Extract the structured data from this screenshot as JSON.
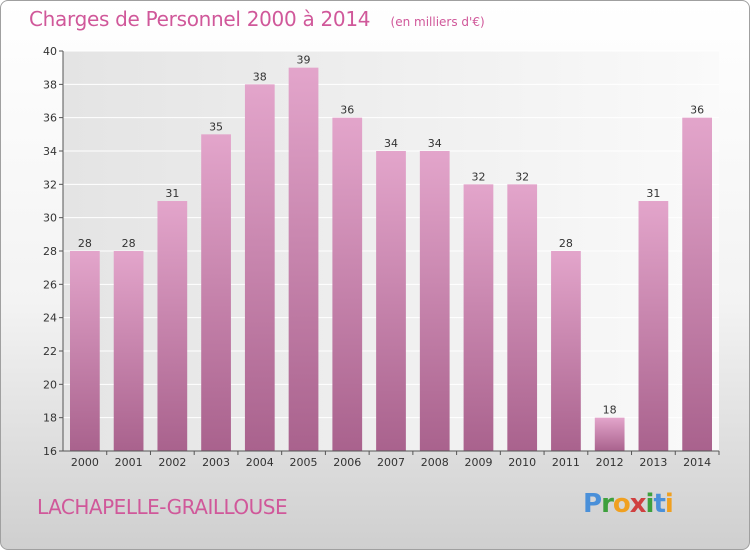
{
  "header": {
    "title": "Charges de Personnel 2000 à 2014",
    "subtitle": "(en milliers d'€)"
  },
  "footer": {
    "commune": "LACHAPELLE-GRAILLOUSE",
    "logo": [
      "P",
      "r",
      "o",
      "x",
      "i",
      "t",
      "i"
    ]
  },
  "colors": {
    "title": "#d0589a",
    "bar_top": "#e3a5cb",
    "bar_bottom": "#a9628d",
    "plot_bg_left": "#e4e4e4",
    "plot_bg_right": "#fafafa"
  },
  "chart_data": {
    "type": "bar",
    "title": "Charges de Personnel 2000 à 2014",
    "subtitle": "(en milliers d'€)",
    "categories": [
      "2000",
      "2001",
      "2002",
      "2003",
      "2004",
      "2005",
      "2006",
      "2007",
      "2008",
      "2009",
      "2010",
      "2011",
      "2012",
      "2013",
      "2014"
    ],
    "values": [
      28,
      28,
      31,
      35,
      38,
      39,
      36,
      34,
      34,
      32,
      32,
      28,
      18,
      31,
      36
    ],
    "ylim": [
      16,
      40
    ],
    "yticks": [
      16,
      18,
      20,
      22,
      24,
      26,
      28,
      30,
      32,
      34,
      36,
      38,
      40
    ],
    "grid": true,
    "legend": "none"
  }
}
